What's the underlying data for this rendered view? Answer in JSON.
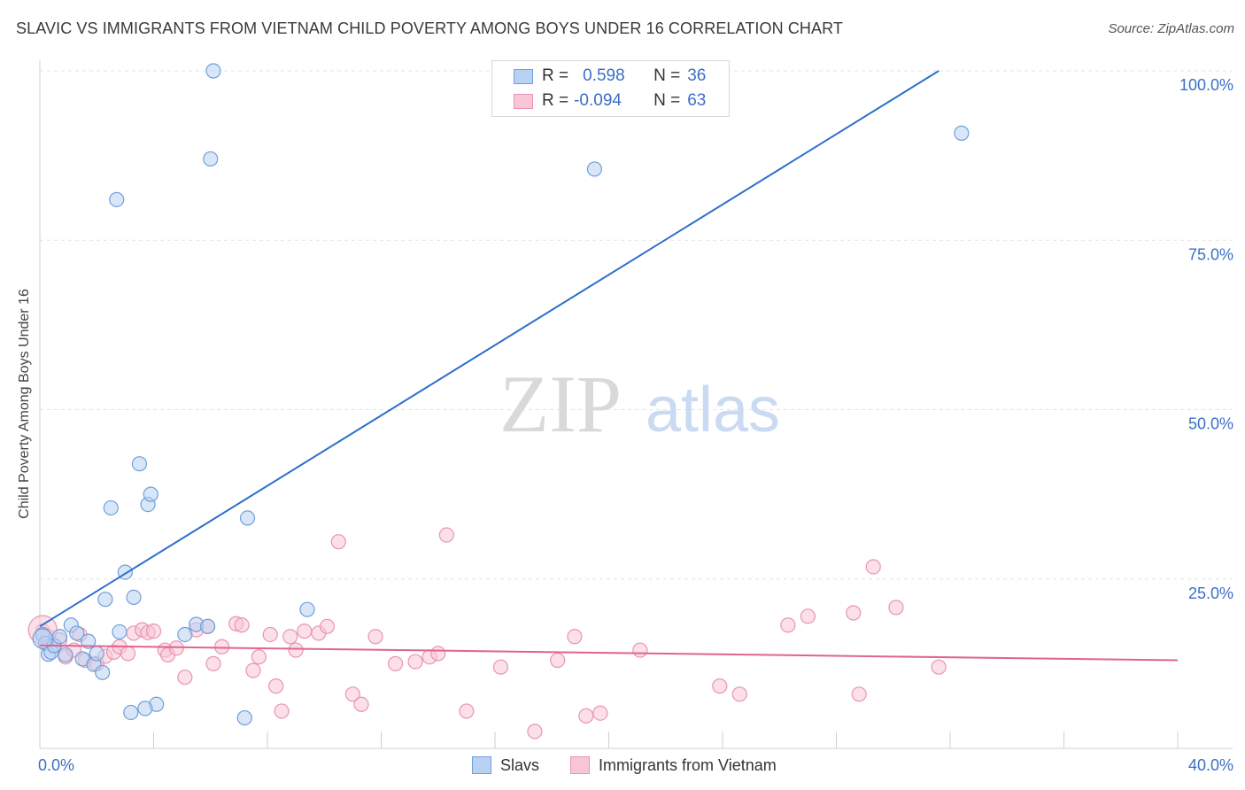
{
  "title": "SLAVIC VS IMMIGRANTS FROM VIETNAM CHILD POVERTY AMONG BOYS UNDER 16 CORRELATION CHART",
  "source": "Source: ZipAtlas.com",
  "watermark": {
    "zip": "ZIP",
    "atlas": "atlas"
  },
  "legend": {
    "slavs": {
      "r_label": "R =",
      "r_value": "0.598",
      "n_label": "N =",
      "n_value": "36"
    },
    "vietnam": {
      "r_label": "R =",
      "r_value": "-0.094",
      "n_label": "N =",
      "n_value": "63"
    }
  },
  "bottom_legend": {
    "slavs": "Slavs",
    "vietnam": "Immigrants from Vietnam"
  },
  "colors": {
    "blue_fill": "#b9d1f2",
    "blue_stroke": "#6f9fdc",
    "blue_line": "#2d6fcc",
    "pink_fill": "#f8c6d6",
    "pink_stroke": "#e994b1",
    "pink_line": "#e0648f",
    "tick_text": "#3b6fc5",
    "grid": "#e3e3e3"
  },
  "chart_data": {
    "type": "scatter",
    "xlabel": "",
    "ylabel": "Child Poverty Among Boys Under 16",
    "xlim": [
      0,
      40
    ],
    "ylim": [
      0,
      100
    ],
    "x_tick_labels": [
      "0.0%",
      "40.0%"
    ],
    "y_ticks": [
      {
        "value": 100,
        "label": "100.0%"
      },
      {
        "value": 75,
        "label": "75.0%"
      },
      {
        "value": 50,
        "label": "50.0%"
      },
      {
        "value": 25,
        "label": "25.0%"
      }
    ],
    "series": [
      {
        "name": "Slavs",
        "color": "blue",
        "points": [
          [
            0.1,
            16.8
          ],
          [
            0.2,
            15.5
          ],
          [
            0.3,
            13.9
          ],
          [
            0.4,
            14.2
          ],
          [
            0.5,
            15.2
          ],
          [
            0.7,
            16.5
          ],
          [
            0.9,
            13.8
          ],
          [
            1.1,
            18.2
          ],
          [
            1.3,
            17.0
          ],
          [
            1.5,
            13.2
          ],
          [
            1.7,
            15.8
          ],
          [
            1.9,
            12.4
          ],
          [
            2.0,
            14.0
          ],
          [
            2.2,
            11.2
          ],
          [
            2.3,
            22.0
          ],
          [
            2.5,
            35.5
          ],
          [
            2.8,
            17.2
          ],
          [
            3.0,
            26.0
          ],
          [
            3.3,
            22.3
          ],
          [
            3.5,
            42.0
          ],
          [
            3.8,
            36.0
          ],
          [
            3.9,
            37.5
          ],
          [
            4.1,
            6.5
          ],
          [
            5.1,
            16.8
          ],
          [
            5.5,
            18.3
          ],
          [
            5.9,
            18.0
          ],
          [
            6.0,
            87.0
          ],
          [
            6.1,
            100.0
          ],
          [
            7.2,
            4.5
          ],
          [
            7.3,
            34.0
          ],
          [
            9.4,
            20.5
          ],
          [
            2.7,
            81.0
          ],
          [
            3.2,
            5.3
          ],
          [
            3.7,
            5.9
          ],
          [
            19.5,
            85.5
          ],
          [
            32.4,
            90.8
          ]
        ]
      },
      {
        "name": "Immigrants from Vietnam",
        "color": "pink",
        "points": [
          [
            0.1,
            17.3
          ],
          [
            0.3,
            16.5
          ],
          [
            0.5,
            15.0
          ],
          [
            0.7,
            16.0
          ],
          [
            0.9,
            13.5
          ],
          [
            1.2,
            14.5
          ],
          [
            1.4,
            16.8
          ],
          [
            1.6,
            13.0
          ],
          [
            2.0,
            12.5
          ],
          [
            2.3,
            13.6
          ],
          [
            2.6,
            14.2
          ],
          [
            2.8,
            15.0
          ],
          [
            3.1,
            14.0
          ],
          [
            3.3,
            17.0
          ],
          [
            3.6,
            17.5
          ],
          [
            3.8,
            17.1
          ],
          [
            4.0,
            17.3
          ],
          [
            4.4,
            14.5
          ],
          [
            4.5,
            13.8
          ],
          [
            4.8,
            14.8
          ],
          [
            5.1,
            10.5
          ],
          [
            5.5,
            17.5
          ],
          [
            5.9,
            18.0
          ],
          [
            6.1,
            12.5
          ],
          [
            6.4,
            15.0
          ],
          [
            6.9,
            18.4
          ],
          [
            7.1,
            18.2
          ],
          [
            7.5,
            11.5
          ],
          [
            7.7,
            13.5
          ],
          [
            8.1,
            16.8
          ],
          [
            8.3,
            9.2
          ],
          [
            8.5,
            5.5
          ],
          [
            8.8,
            16.5
          ],
          [
            9.0,
            14.5
          ],
          [
            9.3,
            17.3
          ],
          [
            9.8,
            17.0
          ],
          [
            10.1,
            18.0
          ],
          [
            10.5,
            30.5
          ],
          [
            11.0,
            8.0
          ],
          [
            11.3,
            6.5
          ],
          [
            11.8,
            16.5
          ],
          [
            12.5,
            12.5
          ],
          [
            13.2,
            12.8
          ],
          [
            13.7,
            13.5
          ],
          [
            14.0,
            14.0
          ],
          [
            14.3,
            31.5
          ],
          [
            15.0,
            5.5
          ],
          [
            16.2,
            12.0
          ],
          [
            17.4,
            2.5
          ],
          [
            18.2,
            13.0
          ],
          [
            18.8,
            16.5
          ],
          [
            19.2,
            4.8
          ],
          [
            19.7,
            5.2
          ],
          [
            21.1,
            14.5
          ],
          [
            23.9,
            9.2
          ],
          [
            24.6,
            8.0
          ],
          [
            26.3,
            18.2
          ],
          [
            28.6,
            20.0
          ],
          [
            28.8,
            8.0
          ],
          [
            29.3,
            26.8
          ],
          [
            30.1,
            20.8
          ],
          [
            31.6,
            12.0
          ],
          [
            27.0,
            19.5
          ]
        ]
      }
    ],
    "trendlines": [
      {
        "series": "Slavs",
        "x": [
          0,
          31.6
        ],
        "y": [
          18.0,
          100.0
        ]
      },
      {
        "series": "Immigrants from Vietnam",
        "x": [
          0,
          40
        ],
        "y": [
          15.2,
          13.0
        ]
      }
    ]
  }
}
